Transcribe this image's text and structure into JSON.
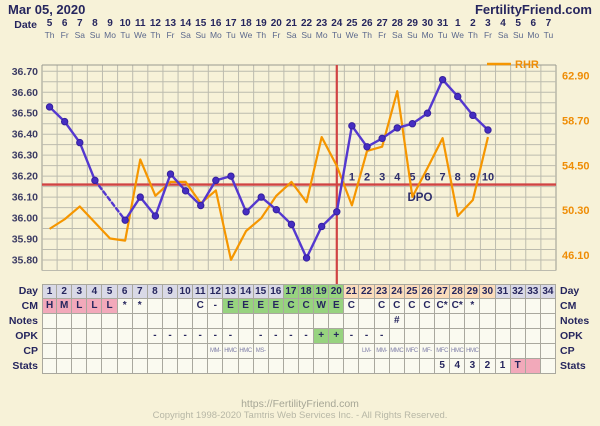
{
  "header": {
    "title": "Mar 05, 2020",
    "brand": "FertilityFriend.com"
  },
  "axis": {
    "date_row_label": "Date",
    "dates": [
      "5",
      "6",
      "7",
      "8",
      "9",
      "10",
      "11",
      "12",
      "13",
      "14",
      "15",
      "16",
      "17",
      "18",
      "19",
      "20",
      "21",
      "22",
      "23",
      "24",
      "25",
      "26",
      "27",
      "28",
      "29",
      "30",
      "31",
      "1",
      "2",
      "3",
      "4",
      "5",
      "6",
      "7"
    ],
    "weekdays": [
      "Th",
      "Fr",
      "Sa",
      "Su",
      "Mo",
      "Tu",
      "We",
      "Th",
      "Fr",
      "Sa",
      "Su",
      "Mo",
      "Tu",
      "We",
      "Th",
      "Fr",
      "Sa",
      "Su",
      "Mo",
      "Tu",
      "We",
      "Th",
      "Fr",
      "Sa",
      "Su",
      "Mo",
      "Tu",
      "We",
      "Th",
      "Fr",
      "Sa",
      "Su",
      "Mo",
      "Tu"
    ]
  },
  "chart_data": {
    "type": "line",
    "days": 34,
    "series": [
      {
        "name": "Temperature",
        "axis": "left",
        "color": "#5438cf",
        "marker_color": "#452dc2",
        "values": [
          36.53,
          36.46,
          36.36,
          36.18,
          null,
          35.99,
          36.1,
          36.01,
          36.21,
          36.13,
          36.06,
          36.18,
          36.2,
          36.03,
          36.1,
          36.04,
          35.97,
          35.81,
          35.96,
          36.03,
          36.44,
          36.34,
          36.38,
          36.43,
          36.45,
          36.5,
          36.66,
          36.58,
          36.49,
          36.42,
          null,
          null,
          null,
          null
        ]
      },
      {
        "name": "RHR",
        "axis": "right",
        "color": "#f59600",
        "values": [
          48.6,
          49.5,
          50.7,
          49.2,
          47.7,
          47.5,
          55.1,
          51.7,
          53.0,
          53.0,
          51.0,
          52.2,
          45.7,
          48.4,
          49.6,
          51.7,
          53.0,
          51.1,
          57.2,
          54.5,
          50.8,
          55.9,
          56.3,
          61.5,
          51.6,
          54.3,
          57.1,
          49.8,
          51.3,
          57.2,
          null,
          null,
          null,
          null
        ]
      }
    ],
    "y_left": {
      "labels": [
        "36.70",
        "36.60",
        "36.50",
        "36.40",
        "36.30",
        "36.20",
        "36.10",
        "36.00",
        "35.90",
        "35.80"
      ],
      "min": 35.75,
      "max": 36.73,
      "step": 0.05
    },
    "y_right": {
      "labels": [
        "62.90",
        "58.70",
        "54.50",
        "50.30",
        "46.10"
      ],
      "min": 44.7,
      "max": 63.95
    },
    "coverline": 36.16,
    "ovulation_day": 20,
    "dpo": {
      "start_day": 21,
      "labels": [
        "1",
        "2",
        "3",
        "4",
        "5",
        "6",
        "7",
        "8",
        "9",
        "10"
      ],
      "caption": "DPO"
    },
    "legend": {
      "label": "RHR",
      "position": "top-right"
    },
    "grid": true,
    "line_colors": {
      "red_lines": "#d04343",
      "gridline": "#bcbbae",
      "plot_border": "#9a9a90"
    }
  },
  "table": {
    "rows": [
      {
        "key": "day",
        "label": "Day",
        "cells": [
          {
            "t": "1",
            "bg": "lav"
          },
          {
            "t": "2",
            "bg": "lav"
          },
          {
            "t": "3",
            "bg": "lav"
          },
          {
            "t": "4",
            "bg": "lav"
          },
          {
            "t": "5",
            "bg": "lav"
          },
          {
            "t": "6",
            "bg": "lav"
          },
          {
            "t": "7",
            "bg": "lav"
          },
          {
            "t": "8",
            "bg": "lav"
          },
          {
            "t": "9",
            "bg": "lav"
          },
          {
            "t": "10",
            "bg": "lav"
          },
          {
            "t": "11",
            "bg": "lav"
          },
          {
            "t": "12",
            "bg": "lav"
          },
          {
            "t": "13",
            "bg": "lav"
          },
          {
            "t": "14",
            "bg": "lav"
          },
          {
            "t": "15",
            "bg": "lav"
          },
          {
            "t": "16",
            "bg": "lav"
          },
          {
            "t": "17",
            "bg": "grn"
          },
          {
            "t": "18",
            "bg": "grn"
          },
          {
            "t": "19",
            "bg": "grn"
          },
          {
            "t": "20",
            "bg": "grn"
          },
          {
            "t": "21",
            "bg": "pch"
          },
          {
            "t": "22",
            "bg": "pch"
          },
          {
            "t": "23",
            "bg": "pch"
          },
          {
            "t": "24",
            "bg": "pch"
          },
          {
            "t": "25",
            "bg": "pch"
          },
          {
            "t": "26",
            "bg": "pch"
          },
          {
            "t": "27",
            "bg": "pch"
          },
          {
            "t": "28",
            "bg": "pch"
          },
          {
            "t": "29",
            "bg": "pch"
          },
          {
            "t": "30",
            "bg": "pch"
          },
          {
            "t": "31",
            "bg": "lav"
          },
          {
            "t": "32",
            "bg": "lav"
          },
          {
            "t": "33",
            "bg": "lav"
          },
          {
            "t": "34",
            "bg": "lav"
          }
        ]
      },
      {
        "key": "cm",
        "label": "CM",
        "cells": [
          {
            "t": "H",
            "bg": "pnk"
          },
          {
            "t": "M",
            "bg": "pnk"
          },
          {
            "t": "L",
            "bg": "pnk"
          },
          {
            "t": "L",
            "bg": "pnk"
          },
          {
            "t": "L",
            "bg": "pnk"
          },
          {
            "t": "*"
          },
          {
            "t": "*"
          },
          {},
          {},
          {},
          {
            "t": "C"
          },
          {
            "t": "-"
          },
          {
            "t": "E",
            "bg": "grn"
          },
          {
            "t": "E",
            "bg": "grn"
          },
          {
            "t": "E",
            "bg": "grn"
          },
          {
            "t": "E",
            "bg": "grn"
          },
          {
            "t": "C",
            "bg": "grn"
          },
          {
            "t": "C",
            "bg": "grn"
          },
          {
            "t": "W",
            "bg": "grn"
          },
          {
            "t": "E",
            "bg": "grn"
          },
          {
            "t": "C"
          },
          {},
          {
            "t": "C"
          },
          {
            "t": "C"
          },
          {
            "t": "C"
          },
          {
            "t": "C"
          },
          {
            "t": "C*"
          },
          {
            "t": "C*"
          },
          {
            "t": "*"
          },
          {},
          {},
          {},
          {},
          {}
        ]
      },
      {
        "key": "notes",
        "label": "Notes",
        "cells": [
          {},
          {},
          {},
          {},
          {},
          {},
          {},
          {},
          {},
          {},
          {},
          {},
          {},
          {},
          {},
          {},
          {},
          {},
          {},
          {},
          {},
          {},
          {},
          {
            "t": "#"
          },
          {},
          {},
          {},
          {},
          {},
          {},
          {},
          {},
          {},
          {}
        ]
      },
      {
        "key": "opk",
        "label": "OPK",
        "cells": [
          {},
          {},
          {},
          {},
          {},
          {},
          {},
          {
            "t": "-"
          },
          {
            "t": "-"
          },
          {
            "t": "-"
          },
          {
            "t": "-"
          },
          {
            "t": "-"
          },
          {
            "t": "-"
          },
          {},
          {
            "t": "-"
          },
          {
            "t": "-"
          },
          {
            "t": "-"
          },
          {
            "t": "-"
          },
          {
            "t": "+",
            "bg": "grn"
          },
          {
            "t": "+",
            "bg": "grn"
          },
          {
            "t": "-"
          },
          {
            "t": "-"
          },
          {
            "t": "-"
          },
          {},
          {},
          {},
          {},
          {},
          {},
          {},
          {},
          {},
          {},
          {}
        ]
      },
      {
        "key": "cp",
        "label": "CP",
        "cells": [
          {},
          {},
          {},
          {},
          {},
          {},
          {},
          {},
          {},
          {},
          {},
          {
            "t": "MM-"
          },
          {
            "t": "HMC"
          },
          {
            "t": "HMC"
          },
          {
            "t": "MS-"
          },
          {},
          {},
          {},
          {},
          {},
          {},
          {
            "t": "LM-"
          },
          {
            "t": "MM-"
          },
          {
            "t": "MMC"
          },
          {
            "t": "MFC"
          },
          {
            "t": "MF-"
          },
          {
            "t": "MFC"
          },
          {
            "t": "HMC"
          },
          {
            "t": "HMC"
          },
          {},
          {},
          {},
          {},
          {}
        ]
      },
      {
        "key": "stats",
        "label": "Stats",
        "cells": [
          {},
          {},
          {},
          {},
          {},
          {},
          {},
          {},
          {},
          {},
          {},
          {},
          {},
          {},
          {},
          {},
          {},
          {},
          {},
          {},
          {},
          {},
          {},
          {},
          {},
          {},
          {
            "t": "5"
          },
          {
            "t": "4"
          },
          {
            "t": "3"
          },
          {
            "t": "2"
          },
          {
            "t": "1"
          },
          {
            "t": "T",
            "bg": "pnk"
          },
          {
            "bg": "pnk"
          },
          {}
        ]
      }
    ]
  },
  "footer": {
    "url": "https://FertilityFriend.com",
    "copyright": "Copyright 1998-2020 Tamtris Web Services Inc. - All Rights Reserved."
  },
  "palette": {
    "background": "#f7f2d8",
    "navy_text": "#26265e",
    "pink": "#f2a9ba",
    "green": "#97d37f",
    "peach": "#fbdcbb",
    "lavender": "#d9d9e6",
    "orange": "#f59600",
    "temp_purple": "#5438cf",
    "red": "#d04343"
  }
}
